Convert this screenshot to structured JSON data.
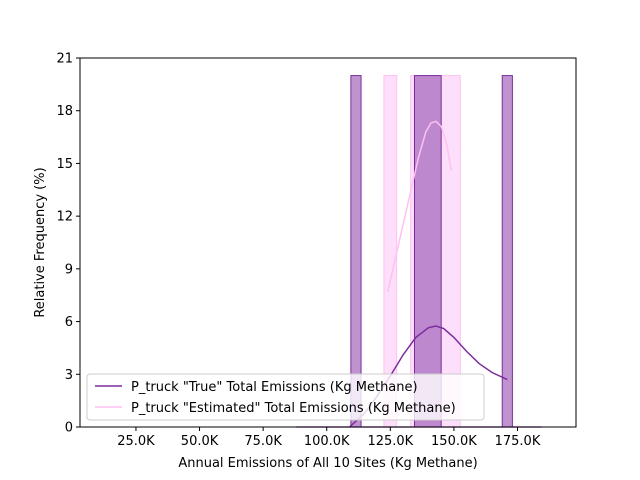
{
  "chart_data": {
    "type": "histogram",
    "title": "",
    "xlabel": "Annual Emissions of All 10 Sites (Kg Methane)",
    "ylabel": "Relative Frequency (%)",
    "xlim": [
      3000,
      198000
    ],
    "ylim": [
      0,
      21
    ],
    "x_ticks": [
      25000,
      50000,
      75000,
      100000,
      125000,
      150000,
      175000
    ],
    "x_tick_labels": [
      "25.0K",
      "50.0K",
      "75.0K",
      "100.0K",
      "125.0K",
      "150.0K",
      "175.0K"
    ],
    "y_ticks": [
      0,
      3,
      6,
      9,
      12,
      15,
      18,
      21
    ],
    "y_tick_labels": [
      "0",
      "3",
      "6",
      "9",
      "12",
      "15",
      "18",
      "21"
    ],
    "grid": false,
    "legend_position": "lower-left",
    "series": [
      {
        "name": "P_truck \"True\" Total Emissions (Kg Methane)",
        "color": "#7b2d9e",
        "fill_color": "#9b59b6",
        "bins": [
          {
            "x0": 109500,
            "x1": 113500,
            "value": 20
          },
          {
            "x0": 134500,
            "x1": 145000,
            "value": 20
          },
          {
            "x0": 169000,
            "x1": 173000,
            "value": 20
          }
        ],
        "baseline": [
          88000,
          184500
        ],
        "kde": {
          "x": [
            109000,
            115000,
            120000,
            125000,
            130000,
            135000,
            140000,
            143000,
            146000,
            150000,
            155000,
            160000,
            165000,
            171000
          ],
          "y": [
            0,
            0.8,
            1.8,
            2.9,
            4.1,
            5.1,
            5.65,
            5.75,
            5.6,
            5.1,
            4.3,
            3.6,
            3.1,
            2.7
          ]
        }
      },
      {
        "name": "P_truck \"Estimated\" Total Emissions (Kg Methane)",
        "color": "#ffc0f2",
        "fill_color": "#fdd9fa",
        "bins": [
          {
            "x0": 122500,
            "x1": 127500,
            "value": 20
          },
          {
            "x0": 133000,
            "x1": 152500,
            "value": 20
          }
        ],
        "baseline": [
          88000,
          184500
        ],
        "kde": {
          "x": [
            124000,
            127000,
            130000,
            133000,
            136000,
            139000,
            141000,
            143000,
            145000,
            147000,
            149000
          ],
          "y": [
            7.7,
            9.6,
            11.5,
            13.4,
            15.3,
            16.8,
            17.3,
            17.4,
            17.1,
            16.2,
            14.6
          ]
        }
      }
    ]
  }
}
